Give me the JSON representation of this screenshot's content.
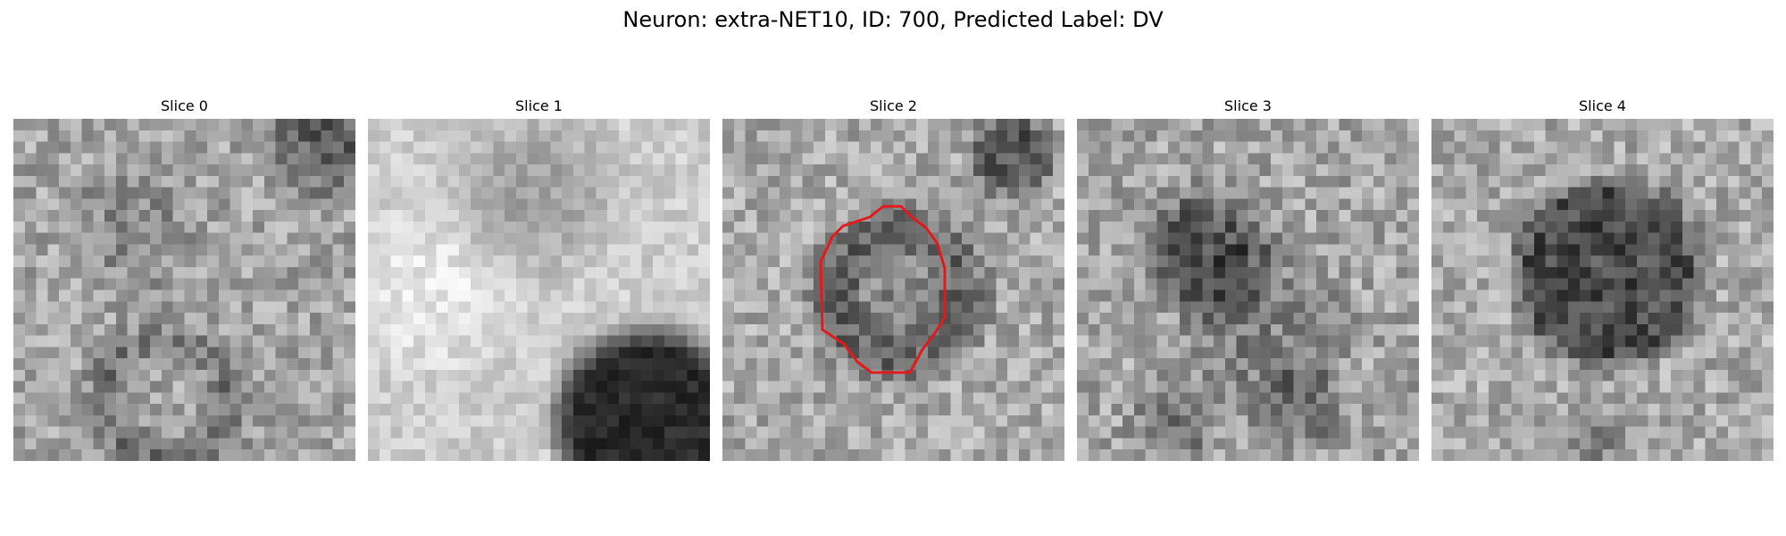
{
  "figure": {
    "title": "Neuron: extra-NET10, ID: 700, Predicted Label: DV",
    "colormap": "grayscale",
    "contour_color": "#e31a1c"
  },
  "slices": [
    {
      "title": "Slice 0"
    },
    {
      "title": "Slice 1"
    },
    {
      "title": "Slice 2"
    },
    {
      "title": "Slice 3"
    },
    {
      "title": "Slice 4"
    }
  ]
}
